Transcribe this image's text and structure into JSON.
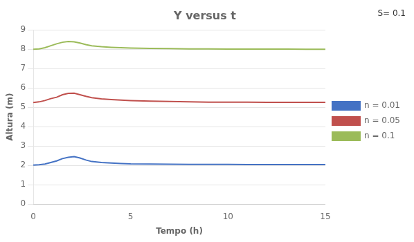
{
  "chart_data": {
    "type": "line",
    "title": "Y versus t",
    "x_label": "Tempo (h)",
    "y_label": "Altura (m)",
    "annotation": "S= 0.1",
    "x": [
      0.0,
      0.3,
      0.6,
      0.9,
      1.2,
      1.5,
      1.8,
      2.1,
      2.4,
      2.7,
      3.0,
      3.5,
      4.0,
      4.5,
      5.0,
      6.0,
      7.0,
      8.0,
      9.0,
      10.0,
      11.0,
      12.0,
      13.0,
      14.0,
      15.0
    ],
    "series": [
      {
        "name": "n = 0.01",
        "color": "#4472C4",
        "values": [
          2.02,
          2.03,
          2.07,
          2.15,
          2.23,
          2.35,
          2.42,
          2.45,
          2.38,
          2.28,
          2.2,
          2.15,
          2.12,
          2.1,
          2.08,
          2.07,
          2.06,
          2.05,
          2.05,
          2.05,
          2.04,
          2.04,
          2.04,
          2.04,
          2.04
        ]
      },
      {
        "name": "n = 0.05",
        "color": "#C0504D",
        "values": [
          5.25,
          5.28,
          5.35,
          5.45,
          5.52,
          5.65,
          5.72,
          5.73,
          5.65,
          5.57,
          5.5,
          5.44,
          5.4,
          5.37,
          5.35,
          5.32,
          5.3,
          5.28,
          5.27,
          5.27,
          5.27,
          5.26,
          5.26,
          5.26,
          5.26
        ]
      },
      {
        "name": "n = 0.1",
        "color": "#9BBB59",
        "values": [
          8.0,
          8.02,
          8.08,
          8.18,
          8.28,
          8.36,
          8.4,
          8.38,
          8.32,
          8.24,
          8.18,
          8.13,
          8.1,
          8.08,
          8.06,
          8.04,
          8.03,
          8.02,
          8.02,
          8.01,
          8.01,
          8.01,
          8.01,
          8.0,
          8.0
        ]
      }
    ],
    "xlim": [
      0,
      15
    ],
    "xticks": [
      0,
      5,
      10,
      15
    ],
    "ylim": [
      0,
      9
    ],
    "yticks": [
      0,
      1,
      2,
      3,
      4,
      5,
      6,
      7,
      8,
      9
    ],
    "grid": "y",
    "legend": "right"
  }
}
